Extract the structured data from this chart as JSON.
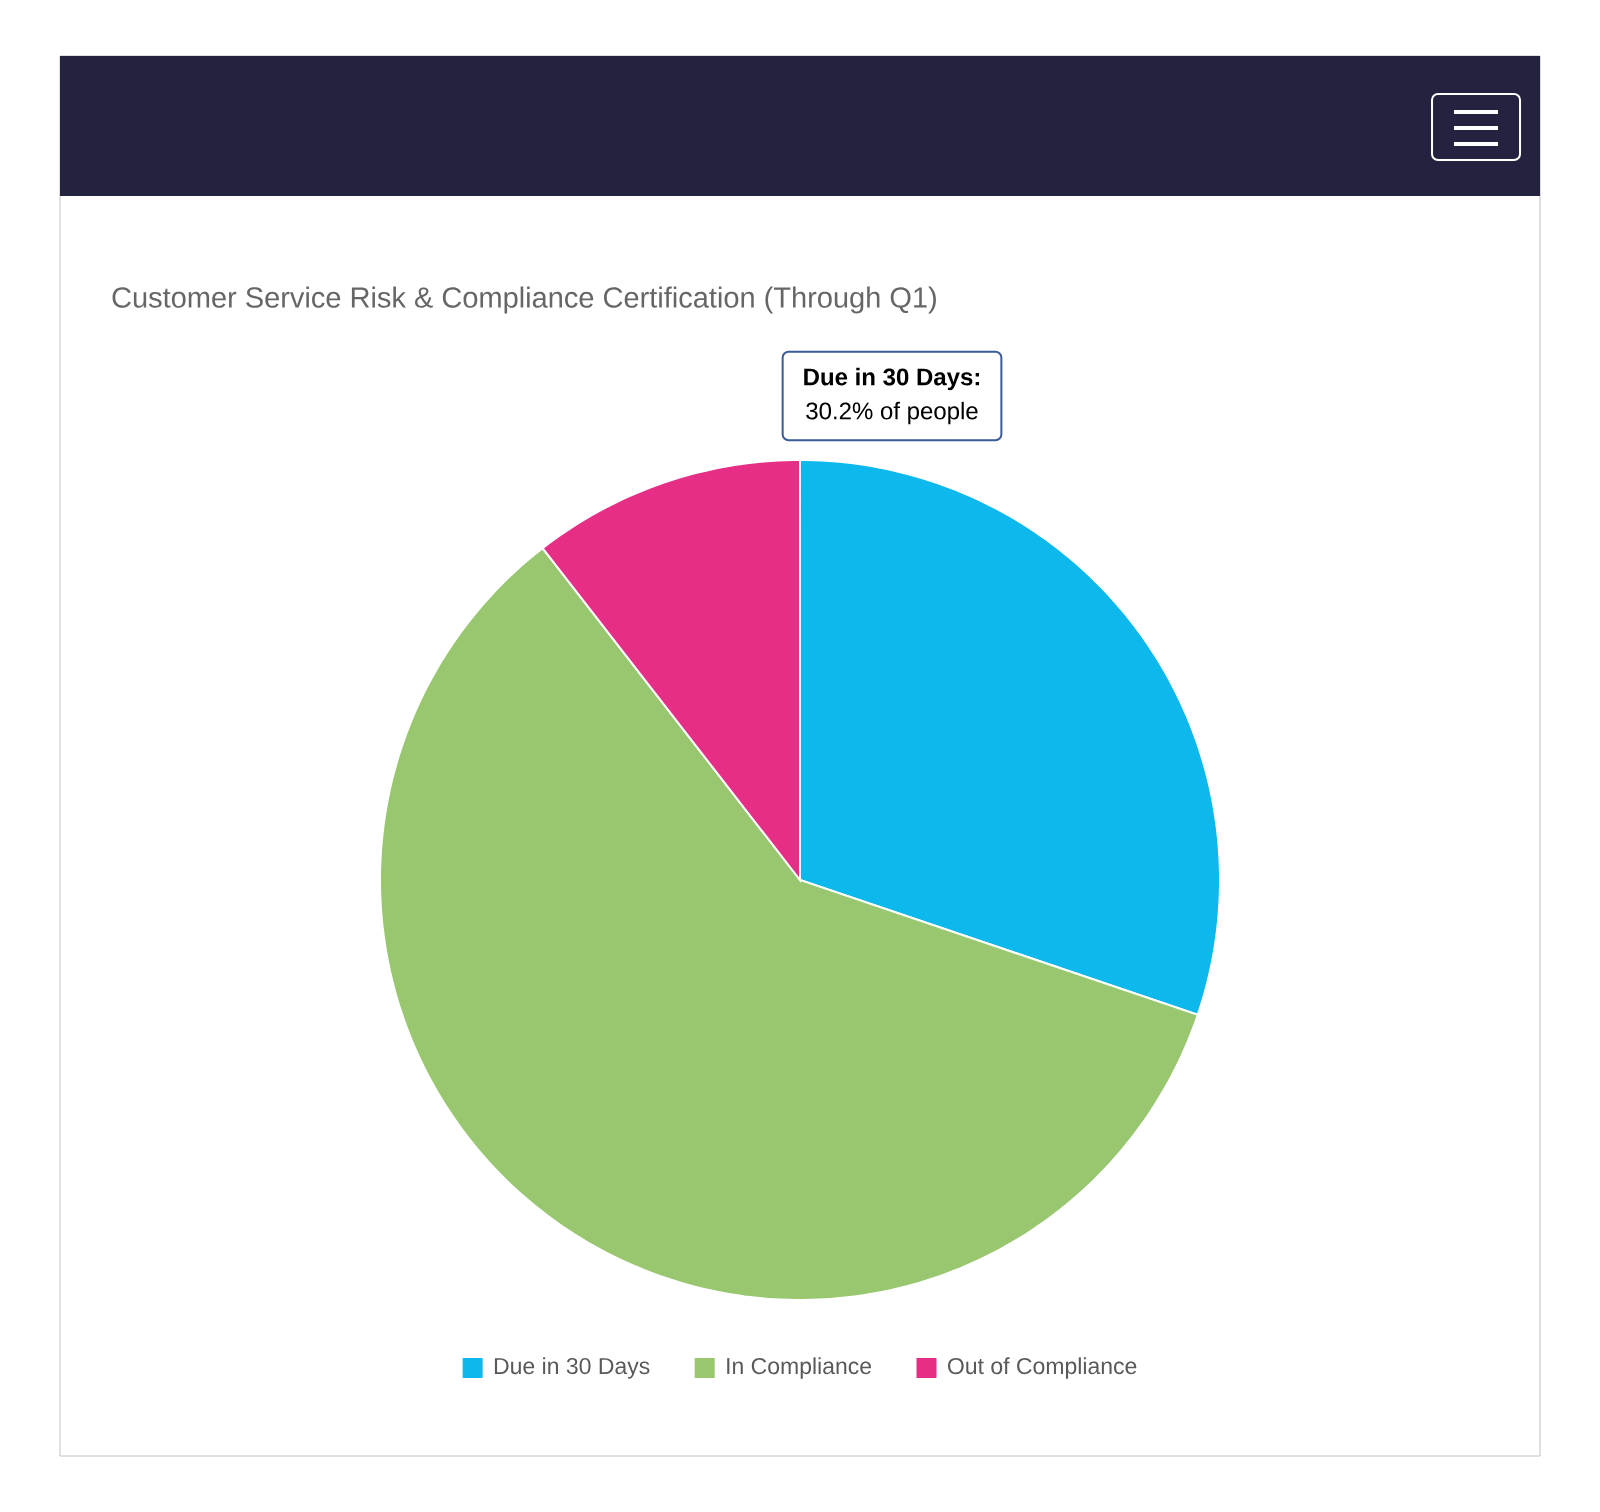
{
  "chart_data": {
    "type": "pie",
    "title": "Customer Service Risk & Compliance Certification (Through Q1)",
    "categories": [
      "Due in 30 Days",
      "In Compliance",
      "Out of Compliance"
    ],
    "values": [
      30.2,
      59.3,
      10.5
    ],
    "colors": [
      "#0cb8ec",
      "#98c76f",
      "#e62e86"
    ],
    "legend": "bottom",
    "annotations": [
      "**Due in 30 Days:**",
      "30.2% of people"
    ]
  }
}
